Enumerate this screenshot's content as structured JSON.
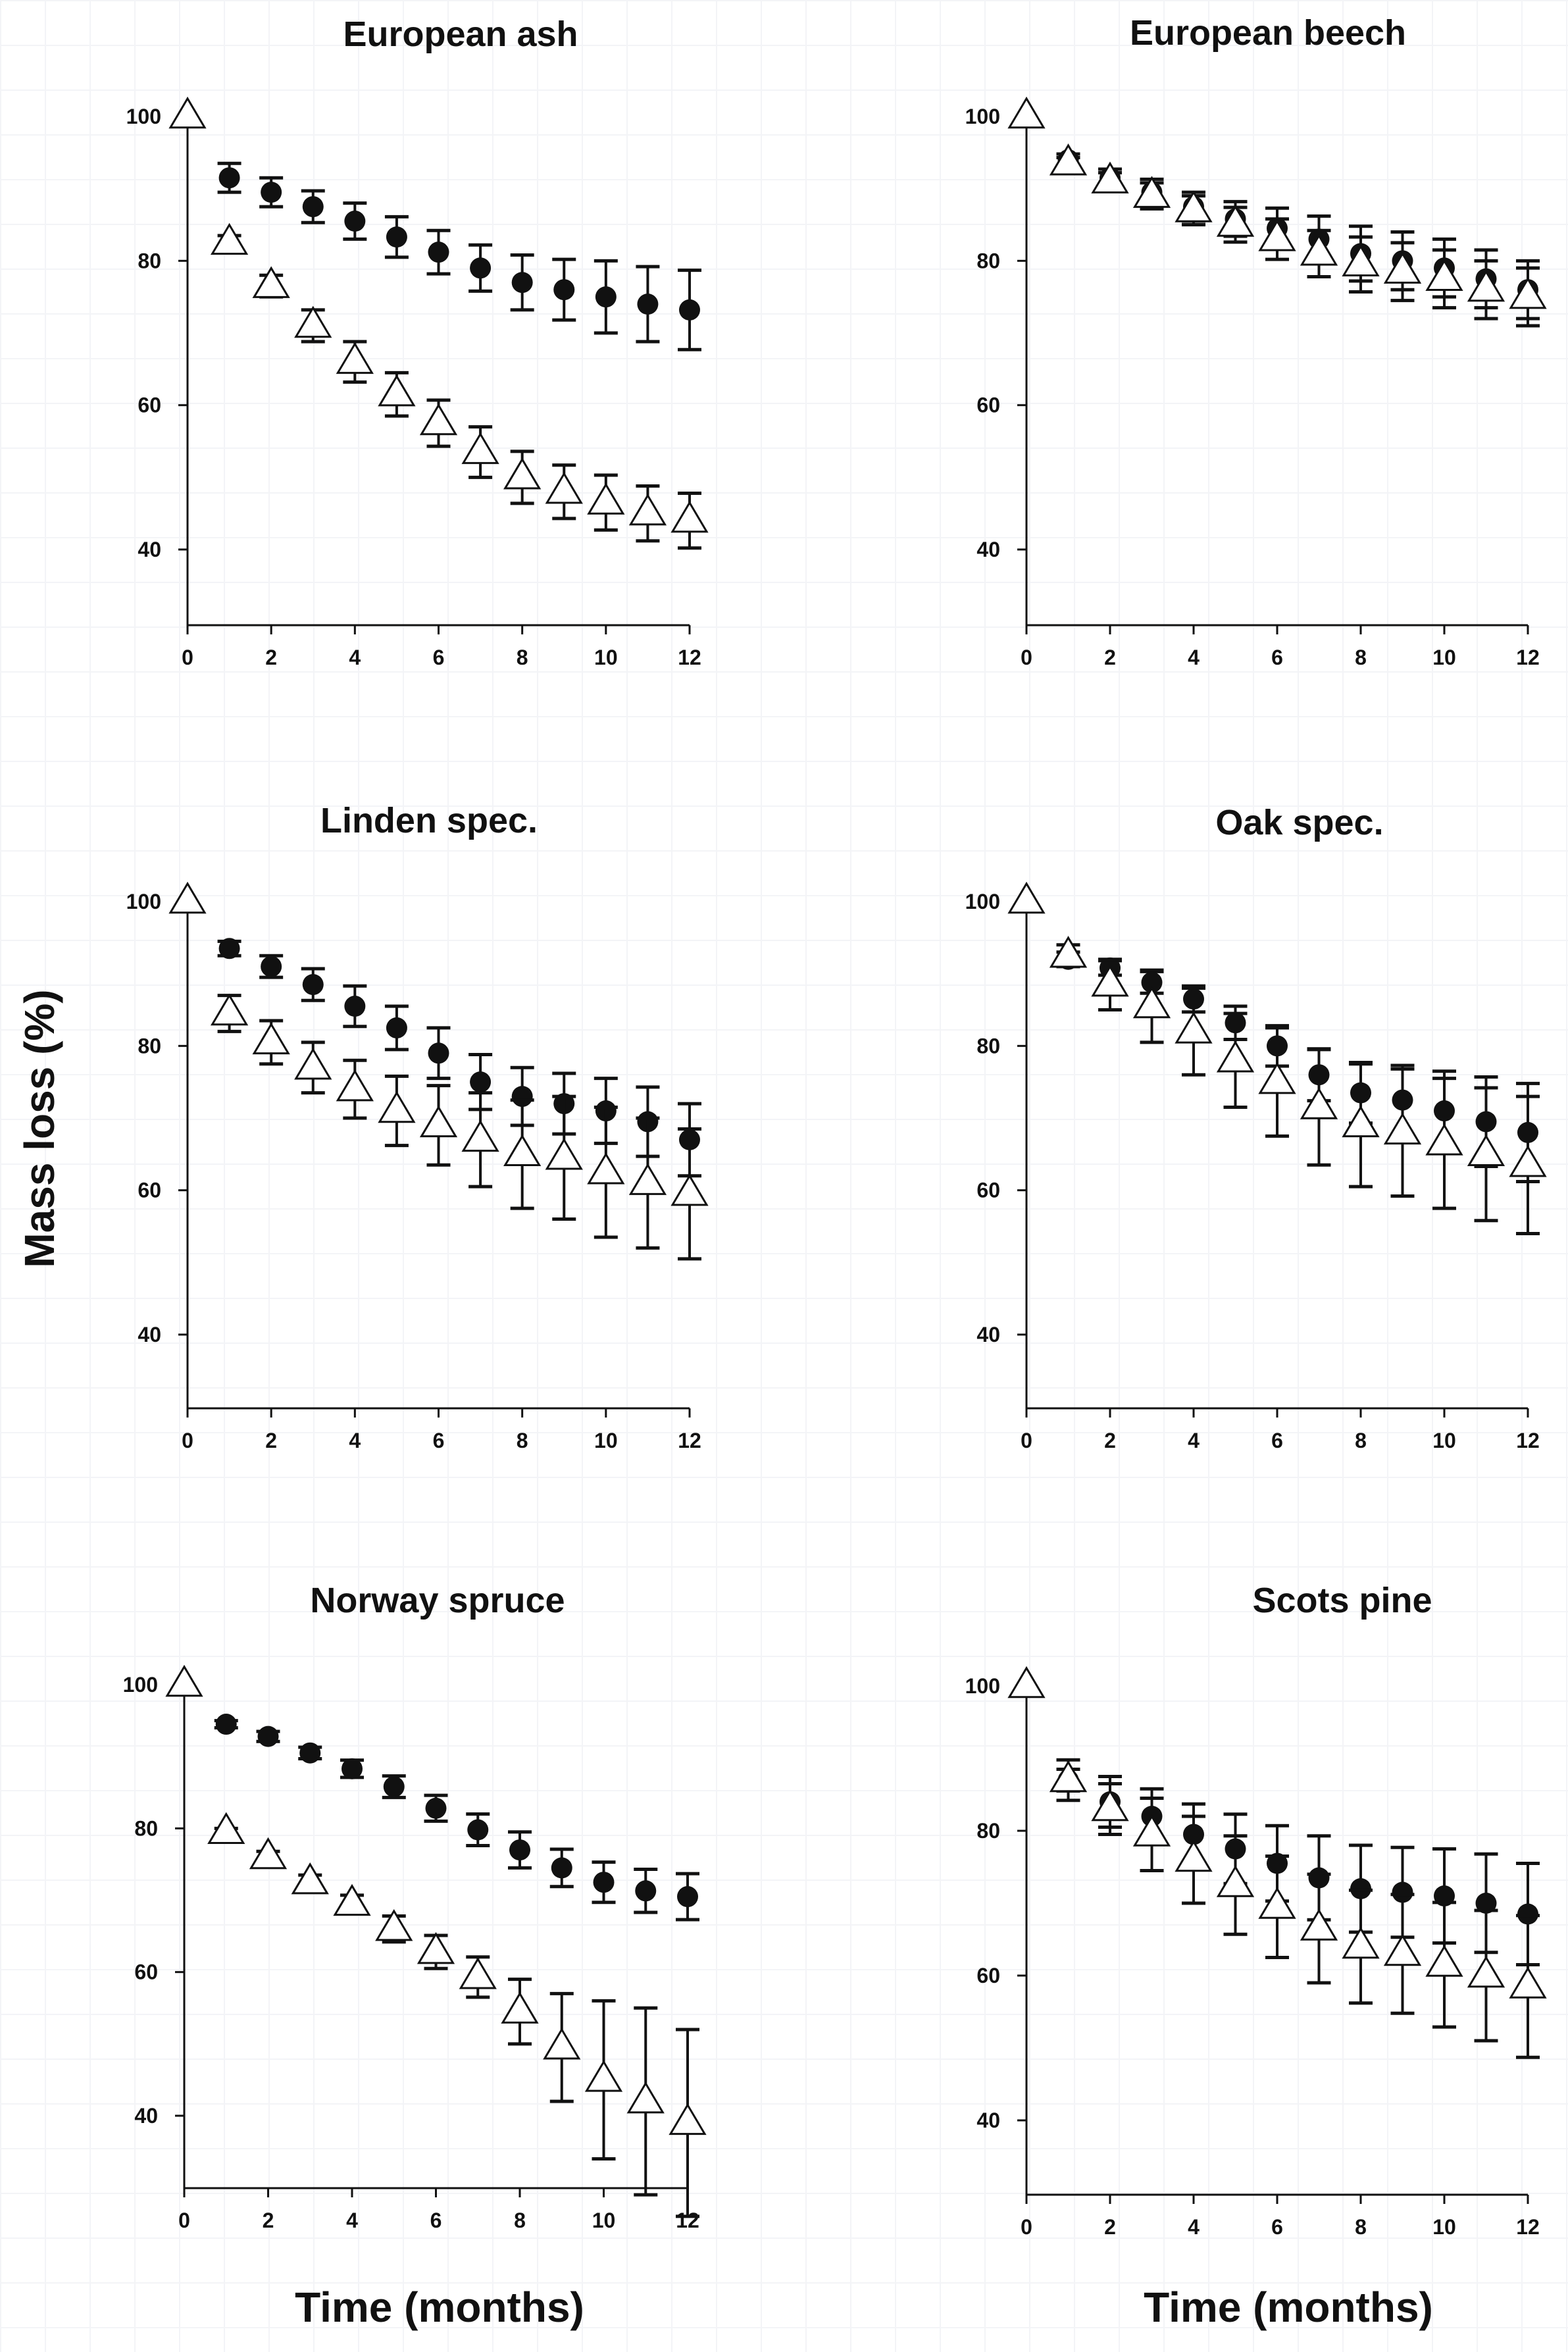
{
  "figure": {
    "ylabel": "Mass loss (%)",
    "xlabel_left": "Time (months)",
    "xlabel_right": "Time (months)"
  },
  "chart_data": [
    {
      "type": "scatter",
      "title": "European ash",
      "xlim": [
        0,
        12
      ],
      "ylim": [
        30,
        100
      ],
      "xticks": [
        0,
        2,
        4,
        6,
        8,
        10,
        12
      ],
      "yticks": [
        40,
        60,
        80,
        100
      ],
      "series": [
        {
          "name": "filled circles",
          "marker": "circle",
          "x": [
            1,
            2,
            3,
            4,
            5,
            6,
            7,
            8,
            9,
            10,
            11,
            12
          ],
          "y": [
            91.5,
            89.5,
            87.5,
            85.5,
            83.3,
            81.2,
            79,
            77,
            76,
            75,
            74,
            73.2
          ],
          "err": [
            2,
            2,
            2.2,
            2.5,
            2.8,
            3,
            3.2,
            3.8,
            4.2,
            5,
            5.2,
            5.5
          ]
        },
        {
          "name": "open triangles",
          "marker": "triangle",
          "x": [
            0,
            1,
            2,
            3,
            4,
            5,
            6,
            7,
            8,
            9,
            10,
            11,
            12
          ],
          "y": [
            100,
            82.5,
            76.5,
            71,
            66,
            61.5,
            57.5,
            53.5,
            50,
            48,
            46.5,
            45,
            44
          ],
          "err": [
            0,
            1,
            1.5,
            2.2,
            2.8,
            3,
            3.2,
            3.5,
            3.6,
            3.7,
            3.8,
            3.8,
            3.8
          ]
        }
      ]
    },
    {
      "type": "scatter",
      "title": "European beech",
      "xlim": [
        0,
        12
      ],
      "ylim": [
        30,
        100
      ],
      "xticks": [
        0,
        2,
        4,
        6,
        8,
        10,
        12
      ],
      "yticks": [
        40,
        60,
        80,
        100
      ],
      "series": [
        {
          "name": "filled circles",
          "marker": "circle",
          "x": [
            1,
            2,
            3,
            4,
            5,
            6,
            7,
            8,
            9,
            10,
            11,
            12
          ],
          "y": [
            94,
            91.5,
            89.5,
            87.5,
            85.8,
            84.5,
            83,
            81,
            80,
            79,
            77.5,
            76
          ],
          "err": [
            0.8,
            1.2,
            1.8,
            2,
            2.4,
            2.8,
            3.2,
            3.8,
            4,
            4,
            4,
            4
          ]
        },
        {
          "name": "open triangles",
          "marker": "triangle",
          "x": [
            0,
            1,
            2,
            3,
            4,
            5,
            6,
            7,
            8,
            9,
            10,
            11,
            12
          ],
          "y": [
            100,
            93.5,
            91,
            89,
            87,
            85,
            83,
            81,
            79.5,
            78.5,
            77.5,
            76,
            75
          ],
          "err": [
            0,
            0.8,
            1.2,
            1.8,
            2,
            2.4,
            2.8,
            3.2,
            3.8,
            4,
            4,
            4,
            4
          ]
        }
      ]
    },
    {
      "type": "scatter",
      "title": "Linden spec.",
      "xlim": [
        0,
        12
      ],
      "ylim": [
        30,
        100
      ],
      "xticks": [
        0,
        2,
        4,
        6,
        8,
        10,
        12
      ],
      "yticks": [
        40,
        60,
        80,
        100
      ],
      "series": [
        {
          "name": "filled circles",
          "marker": "circle",
          "x": [
            1,
            2,
            3,
            4,
            5,
            6,
            7,
            8,
            9,
            10,
            11,
            12
          ],
          "y": [
            93.5,
            91,
            88.5,
            85.5,
            82.5,
            79,
            75,
            73,
            72,
            71,
            69.5,
            67
          ],
          "err": [
            1,
            1.5,
            2.2,
            2.8,
            3,
            3.5,
            3.8,
            4,
            4.2,
            4.5,
            4.8,
            5
          ]
        },
        {
          "name": "open triangles",
          "marker": "triangle",
          "x": [
            0,
            1,
            2,
            3,
            4,
            5,
            6,
            7,
            8,
            9,
            10,
            11,
            12
          ],
          "y": [
            100,
            84.5,
            80.5,
            77,
            74,
            71,
            69,
            67,
            65,
            64.5,
            62.5,
            61,
            59.5
          ],
          "err": [
            0,
            2.5,
            3,
            3.5,
            4,
            4.8,
            5.5,
            6.5,
            7.5,
            8.5,
            9,
            9,
            9
          ]
        }
      ]
    },
    {
      "type": "scatter",
      "title": "Oak spec.",
      "xlim": [
        0,
        12
      ],
      "ylim": [
        30,
        100
      ],
      "xticks": [
        0,
        2,
        4,
        6,
        8,
        10,
        12
      ],
      "yticks": [
        40,
        60,
        80,
        100
      ],
      "series": [
        {
          "name": "filled circles",
          "marker": "circle",
          "x": [
            1,
            2,
            3,
            4,
            5,
            6,
            7,
            8,
            9,
            10,
            11,
            12
          ],
          "y": [
            92,
            90.8,
            88.8,
            86.5,
            83.2,
            80,
            76,
            73.5,
            72.5,
            71,
            69.5,
            68
          ],
          "err": [
            1,
            1,
            1.5,
            1.8,
            2.3,
            2.8,
            3.6,
            4.2,
            4.8,
            5.5,
            6.2,
            6.8
          ]
        },
        {
          "name": "open triangles",
          "marker": "triangle",
          "x": [
            0,
            1,
            2,
            3,
            4,
            5,
            6,
            7,
            8,
            9,
            10,
            11,
            12
          ],
          "y": [
            100,
            92.5,
            88.5,
            85.5,
            82,
            78,
            75,
            71.5,
            69,
            68,
            66.5,
            65,
            63.5
          ],
          "err": [
            0,
            1.5,
            3.5,
            5,
            6,
            6.5,
            7.5,
            8,
            8.5,
            8.8,
            9,
            9.2,
            9.5
          ]
        }
      ]
    },
    {
      "type": "scatter",
      "title": "Norway spruce",
      "xlim": [
        0,
        12
      ],
      "ylim": [
        30,
        100
      ],
      "xticks": [
        0,
        2,
        4,
        6,
        8,
        10,
        12
      ],
      "yticks": [
        40,
        60,
        80,
        100
      ],
      "series": [
        {
          "name": "filled circles",
          "marker": "circle",
          "x": [
            1,
            2,
            3,
            4,
            5,
            6,
            7,
            8,
            9,
            10,
            11,
            12
          ],
          "y": [
            94.5,
            92.8,
            90.5,
            88.3,
            85.8,
            82.8,
            79.8,
            77,
            74.5,
            72.5,
            71.3,
            70.5
          ],
          "err": [
            0.5,
            0.7,
            0.8,
            1.2,
            1.5,
            1.8,
            2.2,
            2.5,
            2.6,
            2.8,
            3,
            3.2
          ]
        },
        {
          "name": "open triangles",
          "marker": "triangle",
          "x": [
            0,
            1,
            2,
            3,
            4,
            5,
            6,
            7,
            8,
            9,
            10,
            11,
            12
          ],
          "y": [
            100,
            79.5,
            76,
            72.5,
            69.5,
            66,
            62.8,
            59.3,
            54.5,
            49.5,
            45,
            42,
            39
          ],
          "err": [
            0,
            0.5,
            0.8,
            1,
            1.2,
            1.8,
            2.3,
            2.8,
            4.5,
            7.5,
            11,
            13,
            13
          ]
        }
      ]
    },
    {
      "type": "scatter",
      "title": "Scots pine",
      "xlim": [
        0,
        12
      ],
      "ylim": [
        30,
        100
      ],
      "xticks": [
        0,
        2,
        4,
        6,
        8,
        10,
        12
      ],
      "yticks": [
        40,
        60,
        80,
        100
      ],
      "series": [
        {
          "name": "filled circles",
          "marker": "circle",
          "x": [
            1,
            2,
            3,
            4,
            5,
            6,
            7,
            8,
            9,
            10,
            11,
            12
          ],
          "y": [
            87,
            84,
            82,
            79.5,
            77.5,
            75.5,
            73.5,
            72,
            71.5,
            71,
            70,
            68.5
          ],
          "err": [
            2.8,
            3.5,
            3.8,
            4.2,
            4.8,
            5.2,
            5.8,
            6,
            6.2,
            6.5,
            6.8,
            7
          ]
        },
        {
          "name": "open triangles",
          "marker": "triangle",
          "x": [
            0,
            1,
            2,
            3,
            4,
            5,
            6,
            7,
            8,
            9,
            10,
            11,
            12
          ],
          "y": [
            100,
            87,
            83,
            79.5,
            76,
            72.5,
            69.5,
            66.5,
            64,
            63,
            61.5,
            60,
            58.5
          ],
          "err": [
            0,
            1.5,
            3.5,
            5,
            6,
            6.8,
            7,
            7.5,
            7.8,
            8.2,
            8.6,
            9,
            9.8
          ]
        }
      ]
    }
  ]
}
